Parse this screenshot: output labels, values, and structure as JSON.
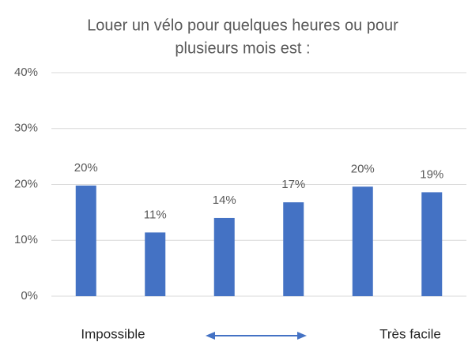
{
  "chart_data": {
    "type": "bar",
    "title": [
      "Louer un vélo pour quelques heures ou pour",
      "plusieurs mois est :"
    ],
    "categories": [
      null,
      null,
      null,
      null,
      null,
      null
    ],
    "values": [
      19.8,
      11.4,
      14.0,
      16.8,
      19.6,
      18.6
    ],
    "value_labels": [
      "20%",
      "11%",
      "14%",
      "17%",
      "20%",
      "19%"
    ],
    "color": "#4472c4",
    "ylim": [
      0,
      40
    ],
    "yticks": [
      {
        "value": 0,
        "label": "0%"
      },
      {
        "value": 10,
        "label": "10%"
      },
      {
        "value": 20,
        "label": "20%"
      },
      {
        "value": 30,
        "label": "30%"
      },
      {
        "value": 40,
        "label": "40%"
      }
    ],
    "grid": true,
    "annotations": [
      "Impossible",
      "Très facile"
    ]
  }
}
